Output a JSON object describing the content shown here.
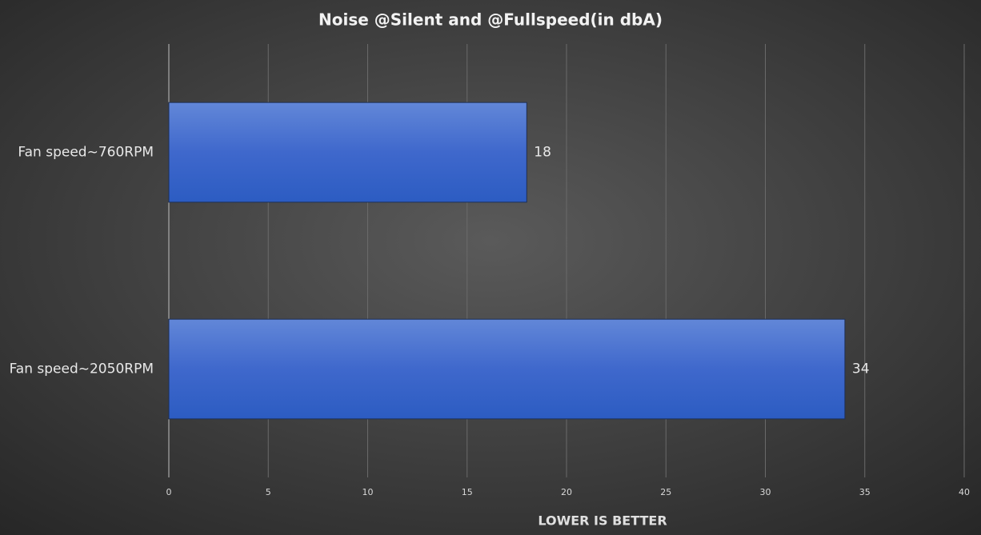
{
  "chart_data": {
    "type": "bar",
    "orientation": "horizontal",
    "title": "Noise @Silent and @Fullspeed(in dbA)",
    "x_label": "LOWER IS BETTER",
    "categories": [
      "Fan speed~760RPM",
      "Fan speed~2050RPM"
    ],
    "values": [
      18,
      34
    ],
    "color": "#3d66cc",
    "xlim": [
      0,
      40
    ],
    "xticks": [
      0,
      5,
      10,
      15,
      20,
      25,
      30,
      35,
      40
    ],
    "grid": true
  }
}
